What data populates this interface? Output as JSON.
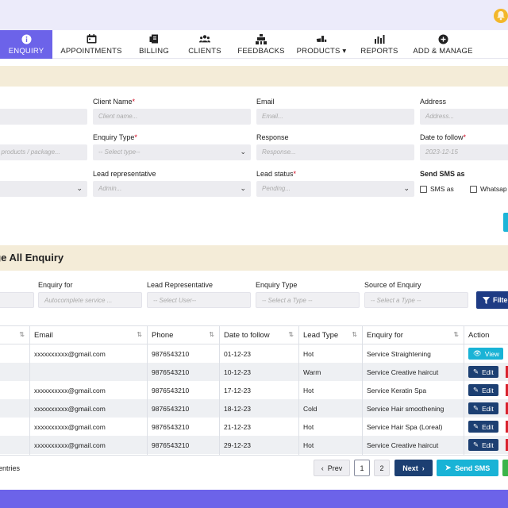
{
  "nav": {
    "items": [
      {
        "label": "ENQUIRY",
        "icon": "info-circle-icon",
        "active": true
      },
      {
        "label": "APPOINTMENTS",
        "icon": "calendar-icon"
      },
      {
        "label": "BILLING",
        "icon": "receipt-icon"
      },
      {
        "label": "CLIENTS",
        "icon": "users-icon"
      },
      {
        "label": "FEEDBACKS",
        "icon": "feedback-icon"
      },
      {
        "label": "PRODUCTS ▾",
        "icon": "products-icon"
      },
      {
        "label": "REPORTS",
        "icon": "bar-chart-icon"
      },
      {
        "label": "ADD & MANAGE",
        "icon": "plus-circle-icon"
      }
    ]
  },
  "form": {
    "client_name_label": "Client Name",
    "client_name_placeholder": "Client name...",
    "email_label": "Email",
    "email_placeholder": "Email...",
    "address_label": "Address",
    "address_placeholder": "Address...",
    "enquiry_for_placeholder": "/ products / package...",
    "enquiry_type_label": "Enquiry Type",
    "enquiry_type_placeholder": "-- Select type--",
    "response_label": "Response",
    "response_placeholder": "Response...",
    "date_to_follow_label": "Date to follow",
    "date_to_follow_placeholder": "2023-12-15",
    "lead_rep_label": "Lead representative",
    "lead_rep_placeholder": "Admin...",
    "lead_status_label": "Lead status",
    "lead_status_placeholder": "Pending...",
    "send_sms_label": "Send SMS as",
    "sms_option": "SMS as",
    "whatsapp_option": "Whatsap",
    "required_mark": "*"
  },
  "manage": {
    "title": "age All Enquiry",
    "filters": {
      "enquiry_for_label": "Enquiry for",
      "enquiry_for_placeholder": "Autocomplete service ...",
      "lead_rep_label": "Lead Representative",
      "lead_rep_placeholder": "-- Select User--",
      "enquiry_type_label": "Enquiry Type",
      "enquiry_type_placeholder": "-- Select a Type --",
      "source_label": "Source of Enquiry",
      "source_placeholder": "-- Select a Type --",
      "filter_button": "Filte"
    }
  },
  "table": {
    "columns": [
      "Email",
      "Phone",
      "Date to follow",
      "Lead Type",
      "Enquiry for",
      "Action"
    ],
    "rows": [
      {
        "email": "xxxxxxxxxx@gmail.com",
        "phone": "9876543210",
        "date": "01-12-23",
        "lead_type": "Hot",
        "enquiry_for": "Service Straightening",
        "action": "View"
      },
      {
        "email": "",
        "phone": "9876543210",
        "date": "10-12-23",
        "lead_type": "Warm",
        "enquiry_for": "Service Creative haircut",
        "action": "Edit"
      },
      {
        "email": "xxxxxxxxxx@gmail.com",
        "phone": "9876543210",
        "date": "17-12-23",
        "lead_type": "Hot",
        "enquiry_for": "Service Keratin Spa",
        "action": "Edit"
      },
      {
        "email": "xxxxxxxxxx@gmail.com",
        "phone": "9876543210",
        "date": "18-12-23",
        "lead_type": "Cold",
        "enquiry_for": "Service Hair smoothening",
        "action": "Edit"
      },
      {
        "email": "xxxxxxxxxx@gmail.com",
        "phone": "9876543210",
        "date": "21-12-23",
        "lead_type": "Hot",
        "enquiry_for": "Service Hair Spa (Loreal)",
        "action": "Edit"
      },
      {
        "email": "xxxxxxxxxx@gmail.com",
        "phone": "9876543210",
        "date": "29-12-23",
        "lead_type": "Hot",
        "enquiry_for": "Service Creative haircut",
        "action": "Edit"
      }
    ]
  },
  "footer": {
    "entries_text": "entries",
    "prev": "Prev",
    "page1": "1",
    "page2": "2",
    "next": "Next",
    "send_sms": "Send SMS"
  },
  "colors": {
    "accent": "#6c63e9",
    "navy": "#1c3f72",
    "cyan": "#19b3d6",
    "band": "#f4ecd8"
  }
}
